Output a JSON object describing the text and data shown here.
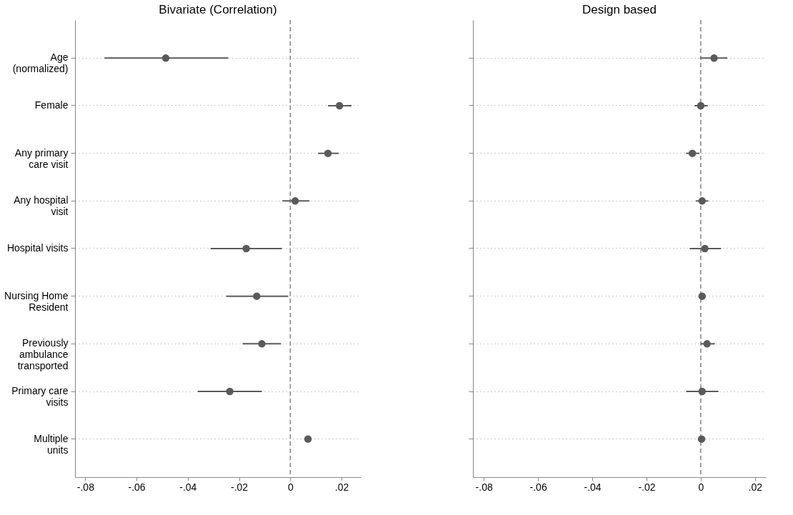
{
  "chart_data": [
    {
      "type": "scatter",
      "title": "Bivariate (Correlation)",
      "orientation": "horizontal",
      "categories": [
        "Age\n(normalized)",
        "Female",
        "Any primary\ncare visit",
        "Any hospital\nvisit",
        "Hospital visits",
        "Nursing Home\nResident",
        "Previously\nambulance\ntransported",
        "Primary care\nvisits",
        "Multiple\nunits"
      ],
      "series": [
        {
          "color": "#5a5a5a",
          "values": [
            -0.0486,
            0.0192,
            0.0147,
            0.0019,
            -0.0172,
            -0.0131,
            -0.0111,
            -0.0236,
            0.0069
          ],
          "errors": [
            [
              -0.0725,
              -0.0242
            ],
            [
              0.0147,
              0.0239
            ],
            [
              0.0108,
              0.0189
            ],
            [
              -0.0031,
              0.0075
            ],
            [
              -0.0311,
              -0.0033
            ],
            [
              -0.025,
              -0.0008
            ],
            [
              -0.0186,
              -0.0036
            ],
            [
              -0.0361,
              -0.0111
            ],
            null
          ]
        }
      ],
      "xlim": [
        -0.084,
        0.0275
      ],
      "xticks": [
        {
          "value": -0.08,
          "label": "-.08"
        },
        {
          "value": -0.06,
          "label": "-.06"
        },
        {
          "value": -0.04,
          "label": "-.04"
        },
        {
          "value": -0.02,
          "label": "-.02"
        },
        0,
        {
          "value": 0.02,
          "label": ".02"
        }
      ],
      "ref_lines": [
        {
          "axis": "x",
          "value": 0,
          "line_style": "dashed",
          "color": "#808080"
        }
      ],
      "grid": "y",
      "marker": "circle"
    },
    {
      "type": "scatter",
      "title": "Design based",
      "orientation": "horizontal",
      "categories": [
        null,
        null,
        null,
        null,
        null,
        null,
        null,
        null,
        null
      ],
      "series": [
        {
          "color": "#5a5a5a",
          "values": [
            0.0049,
            0.0,
            -0.0031,
            0.0005,
            0.0015,
            0.0005,
            0.0023,
            0.0005,
            0.0003
          ],
          "errors": [
            [
              -0.0003,
              0.0098
            ],
            [
              -0.0023,
              0.0026
            ],
            [
              -0.0054,
              -0.0005
            ],
            [
              -0.0018,
              0.0028
            ],
            [
              -0.0041,
              0.0075
            ],
            null,
            [
              0.0,
              0.0052
            ],
            [
              -0.0054,
              0.0065
            ],
            null
          ]
        }
      ],
      "xlim": [
        -0.084,
        0.024
      ],
      "xticks": [
        {
          "value": -0.08,
          "label": "-.08"
        },
        {
          "value": -0.06,
          "label": "-.06"
        },
        {
          "value": -0.04,
          "label": "-.04"
        },
        {
          "value": -0.02,
          "label": "-.02"
        },
        0,
        {
          "value": 0.02,
          "label": ".02"
        }
      ],
      "ref_lines": [
        {
          "axis": "x",
          "value": 0,
          "line_style": "dashed",
          "color": "#808080"
        }
      ],
      "grid": "y",
      "marker": "circle",
      "tick_labels": "x"
    }
  ]
}
